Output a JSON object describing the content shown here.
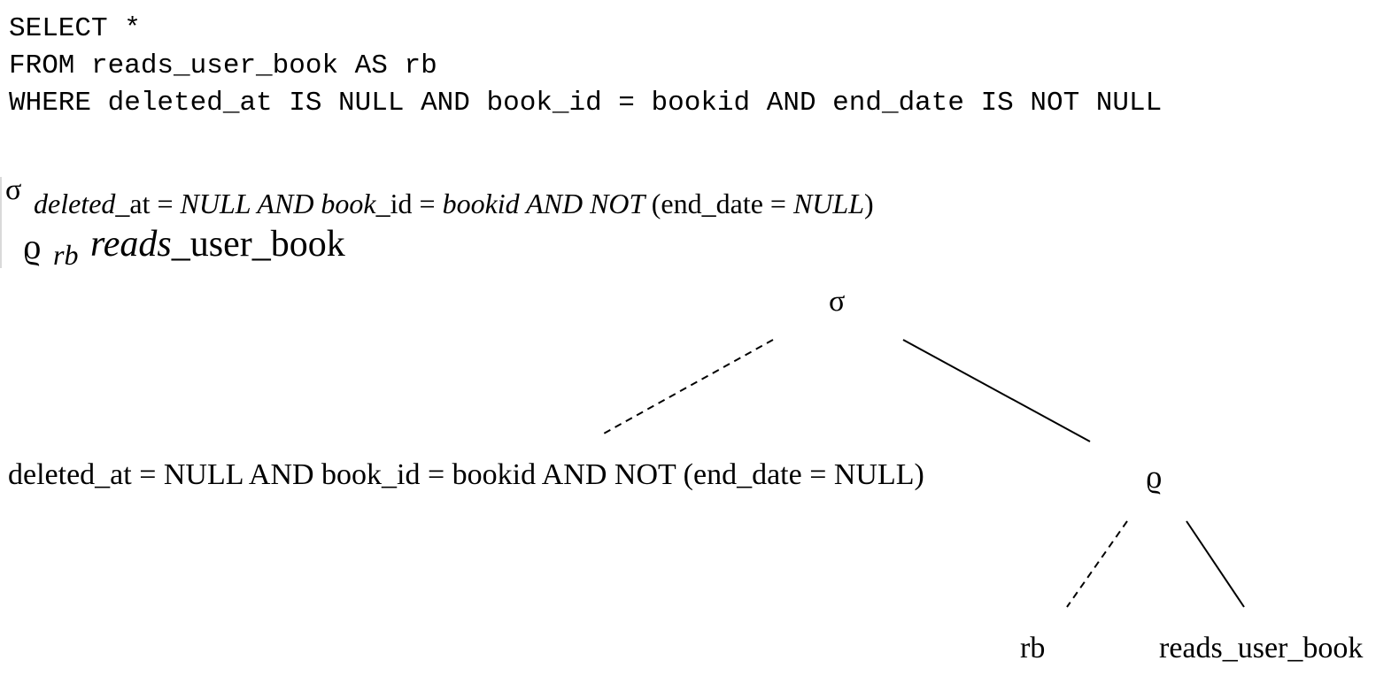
{
  "sql": {
    "line1": "SELECT *",
    "line2": "FROM reads_user_book AS rb",
    "line3": "WHERE deleted_at IS NULL AND book_id = bookid AND end_date IS NOT NULL"
  },
  "algebra": {
    "sigma": "σ",
    "cond_p1": "deleted",
    "cond_p2": "_at = ",
    "cond_p3": "NULL AND book",
    "cond_p4": "_id = ",
    "cond_p5": "bookid AND NOT ",
    "cond_p6": "(end_date = ",
    "cond_p7": "NULL",
    "cond_p8": ")",
    "rho": "ϱ",
    "alias": "rb",
    "rel_p1": "reads",
    "rel_p2": "_user_book"
  },
  "tree": {
    "root": "σ",
    "condition": "deleted_at = NULL AND book_id = bookid AND NOT (end_date = NULL)",
    "rename": "ϱ",
    "alias": "rb",
    "relation": "reads_user_book"
  }
}
